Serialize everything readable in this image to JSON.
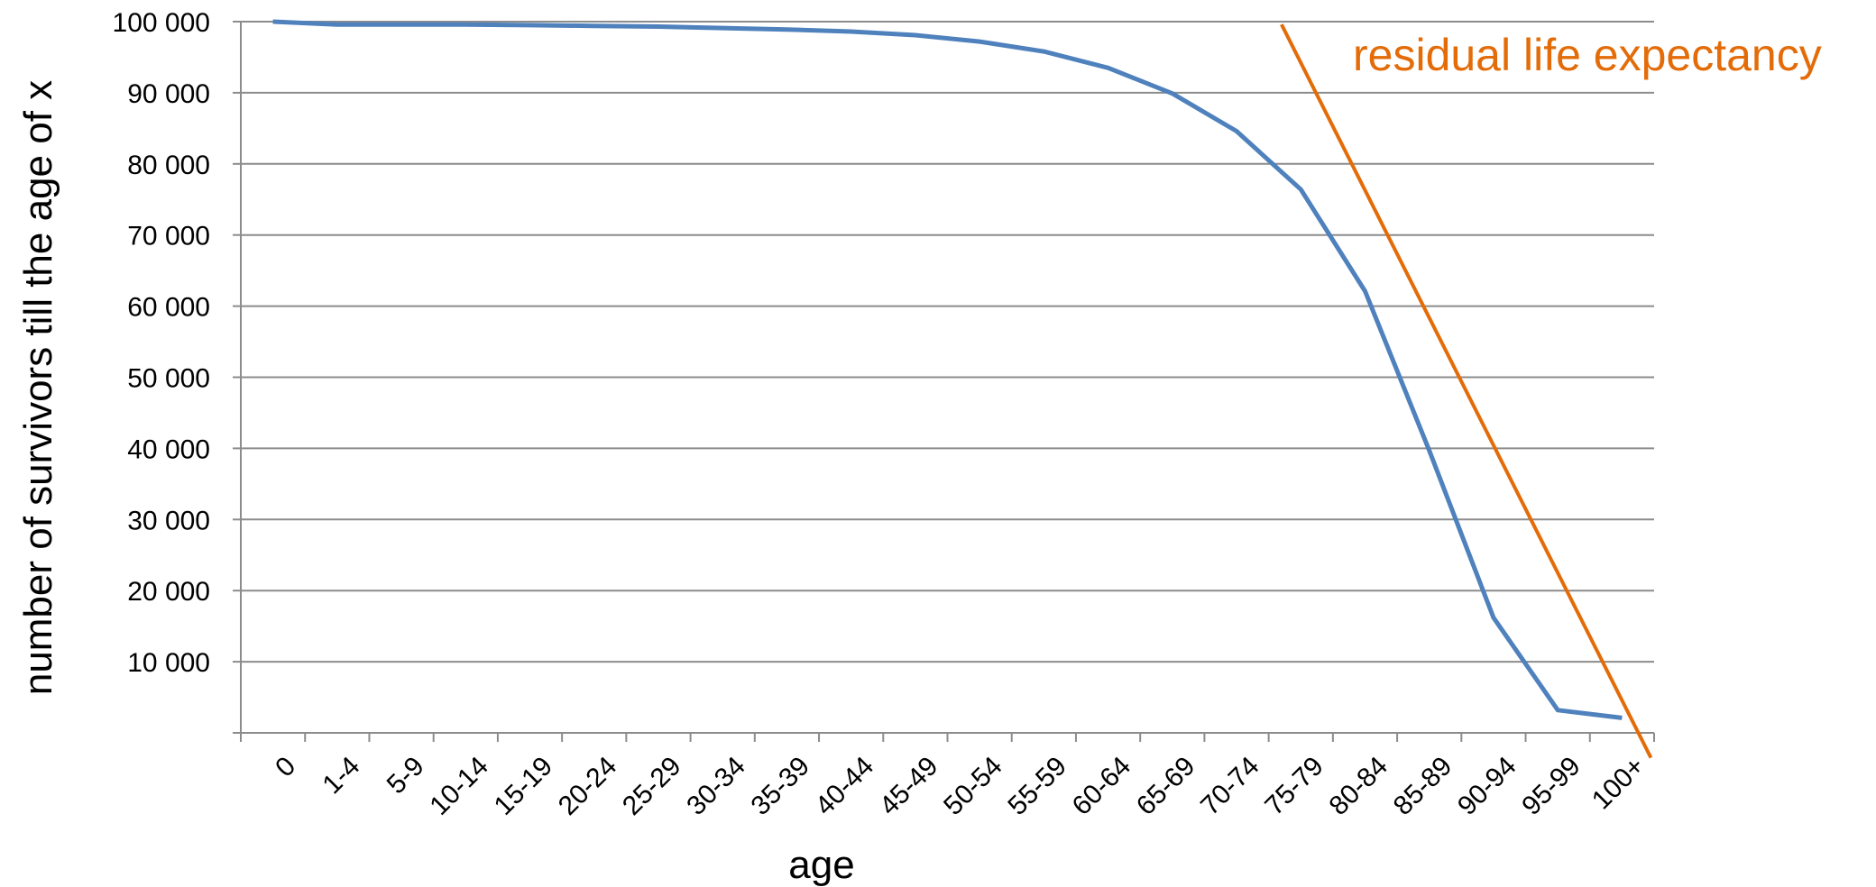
{
  "chart_data": {
    "type": "line",
    "title": "",
    "xlabel": "age",
    "ylabel": "number of survivors till the age of x",
    "categories": [
      "0",
      "1-4",
      "5-9",
      "10-14",
      "15-19",
      "20-24",
      "25-29",
      "30-34",
      "35-39",
      "40-44",
      "45-49",
      "50-54",
      "55-59",
      "60-64",
      "65-69",
      "70-74",
      "75-79",
      "80-84",
      "85-89",
      "90-94",
      "95-99",
      "100+"
    ],
    "y_ticks": [
      10000,
      20000,
      30000,
      40000,
      50000,
      60000,
      70000,
      80000,
      90000,
      100000
    ],
    "y_tick_labels": [
      "10 000",
      "20 000",
      "30 000",
      "40 000",
      "50 000",
      "60 000",
      "70 000",
      "80 000",
      "90 000",
      "100 000"
    ],
    "ylim": [
      0,
      100000
    ],
    "grid": true,
    "series": [
      {
        "color": "#4f81bd",
        "values": [
          100000,
          99600,
          99600,
          99600,
          99500,
          99400,
          99300,
          99100,
          98900,
          98600,
          98100,
          97200,
          95800,
          93500,
          89900,
          84600,
          76400,
          62100,
          39700,
          16200,
          3200,
          2100
        ]
      }
    ],
    "annotation": {
      "text": "residual life expectancy",
      "color": "#e36c09",
      "line": {
        "x_start_category": 16.2,
        "y_start": 99600,
        "x_end_category": 21.95,
        "y_end": -3500
      }
    }
  }
}
